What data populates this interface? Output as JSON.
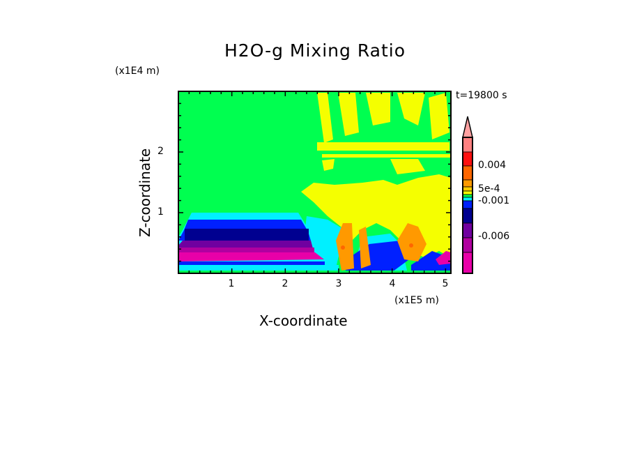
{
  "chart_data": {
    "type": "heatmap",
    "title": "H2O-g Mixing Ratio",
    "xlabel": "X-coordinate",
    "ylabel": "Z-coordinate",
    "x_unit": "(x1E5 m)",
    "z_unit": "(x1E4 m)",
    "annotation": "t=19800 s",
    "xlim": [
      0,
      5.1
    ],
    "ylim": [
      0,
      3.0
    ],
    "x_ticks": [
      "1",
      "2",
      "3",
      "4",
      "5"
    ],
    "y_ticks": [
      "1",
      "2"
    ],
    "colorbar": {
      "labels": [
        "0.004",
        "5e-4",
        "-0.001",
        "-0.006"
      ],
      "colors_top_to_bottom": [
        "#ffa0a0",
        "#ff8080",
        "#ff1010",
        "#ff6600",
        "#ff9900",
        "#ffcc00",
        "#f5ff00",
        "#00ff50",
        "#00f0ff",
        "#0020ff",
        "#000090",
        "#7000a0",
        "#b000a0",
        "#e800a8"
      ],
      "extend": "max"
    },
    "description_regions": {
      "background": "#00ff50",
      "plume_positive": "#f5ff00",
      "core": "#ff9900"
    }
  }
}
